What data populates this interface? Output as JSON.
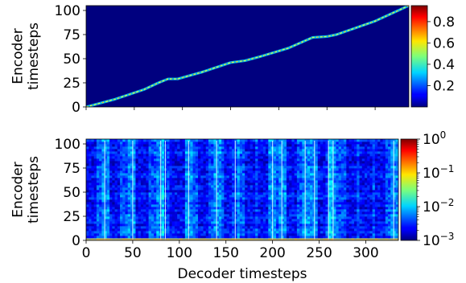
{
  "chart_data": [
    {
      "type": "heatmap",
      "title": "",
      "xlabel": "",
      "ylabel": "Encoder timesteps",
      "xlim": [
        0,
        335
      ],
      "ylim": [
        0,
        105
      ],
      "x_ticks": [
        0,
        50,
        100,
        150,
        200,
        250,
        300
      ],
      "x_tick_labels_visible": false,
      "y_ticks": [
        0,
        25,
        50,
        75,
        100
      ],
      "y_tick_labels": [
        "0",
        "25",
        "50",
        "75",
        "100"
      ],
      "colormap": "jet",
      "background_color": "#000080",
      "colorbar": {
        "scale": "linear",
        "ticks": [
          0.2,
          0.4,
          0.6,
          0.8
        ],
        "tick_labels": [
          "0.2",
          "0.4",
          "0.6",
          "0.8"
        ],
        "range": [
          0.0,
          0.95
        ]
      },
      "alignment_path": [
        [
          0,
          0
        ],
        [
          30,
          8
        ],
        [
          60,
          18
        ],
        [
          75,
          25
        ],
        [
          85,
          29
        ],
        [
          95,
          29
        ],
        [
          120,
          36
        ],
        [
          150,
          46
        ],
        [
          165,
          48
        ],
        [
          180,
          52
        ],
        [
          210,
          61
        ],
        [
          235,
          72
        ],
        [
          250,
          73
        ],
        [
          260,
          75
        ],
        [
          300,
          89
        ],
        [
          335,
          105
        ]
      ]
    },
    {
      "type": "heatmap",
      "title": "",
      "xlabel": "Decoder timesteps",
      "ylabel": "Encoder timesteps",
      "xlim": [
        0,
        335
      ],
      "ylim": [
        0,
        105
      ],
      "x_ticks": [
        0,
        50,
        100,
        150,
        200,
        250,
        300
      ],
      "x_tick_labels": [
        "0",
        "50",
        "100",
        "150",
        "200",
        "250",
        "300"
      ],
      "y_ticks": [
        0,
        25,
        50,
        75,
        100
      ],
      "y_tick_labels": [
        "0",
        "25",
        "50",
        "75",
        "100"
      ],
      "colormap": "jet",
      "colorbar": {
        "scale": "log",
        "range": [
          0.001,
          1
        ],
        "ticks": [
          {
            "base": "10",
            "exp": "0",
            "value": 1
          },
          {
            "base": "10",
            "exp": "−1",
            "value": 0.1
          },
          {
            "base": "10",
            "exp": "−2",
            "value": 0.01
          },
          {
            "base": "10",
            "exp": "−3",
            "value": 0.001
          }
        ]
      },
      "bright_columns": [
        20,
        50,
        80,
        85,
        110,
        140,
        160,
        200,
        210,
        235,
        245,
        260,
        265,
        330
      ],
      "dark_columns": [
        5,
        30,
        60,
        90,
        100,
        125,
        155,
        175,
        190,
        220,
        255,
        285,
        300,
        315
      ],
      "bright_bottom_rows": [
        0,
        1
      ]
    }
  ]
}
